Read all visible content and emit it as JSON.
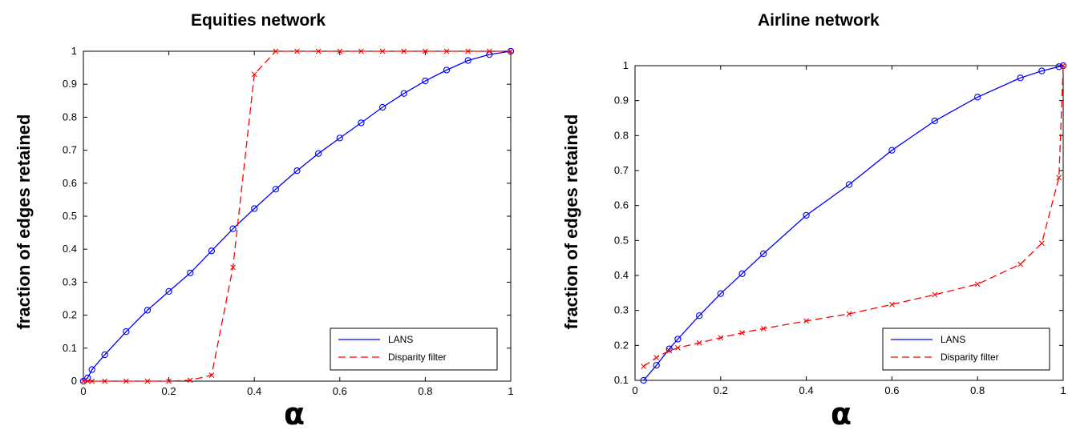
{
  "colors": {
    "lans": "#0000ff",
    "disparity": "#ff0000",
    "axes": "#000000"
  },
  "chart_data": [
    {
      "type": "line",
      "title": "Equities network",
      "xlabel": "α",
      "ylabel": "fraction of edges retained",
      "xlim": [
        0,
        1
      ],
      "ylim": [
        0,
        1
      ],
      "xticks": [
        0,
        0.2,
        0.4,
        0.6,
        0.8,
        1
      ],
      "xtick_labels": [
        "0",
        "0.2",
        "0.4",
        "0.6",
        "0.8",
        "1"
      ],
      "yticks": [
        0,
        0.1,
        0.2,
        0.3,
        0.4,
        0.5,
        0.6,
        0.7,
        0.8,
        0.9,
        1
      ],
      "ytick_labels": [
        "0",
        "0.1",
        "0.2",
        "0.3",
        "0.4",
        "0.5",
        "0.6",
        "0.7",
        "0.8",
        "0.9",
        "1"
      ],
      "grid": false,
      "legend_position": "bottom-right",
      "series": [
        {
          "name": "LANS",
          "color": "#0000ff",
          "line_style": "solid",
          "marker": "o",
          "points": [
            [
              0,
              0
            ],
            [
              0.01,
              0.01
            ],
            [
              0.02,
              0.035
            ],
            [
              0.05,
              0.08
            ],
            [
              0.1,
              0.15
            ],
            [
              0.15,
              0.215
            ],
            [
              0.2,
              0.272
            ],
            [
              0.25,
              0.328
            ],
            [
              0.3,
              0.395
            ],
            [
              0.35,
              0.462
            ],
            [
              0.4,
              0.523
            ],
            [
              0.45,
              0.582
            ],
            [
              0.5,
              0.638
            ],
            [
              0.55,
              0.69
            ],
            [
              0.6,
              0.737
            ],
            [
              0.65,
              0.783
            ],
            [
              0.7,
              0.83
            ],
            [
              0.75,
              0.872
            ],
            [
              0.8,
              0.91
            ],
            [
              0.85,
              0.943
            ],
            [
              0.9,
              0.972
            ],
            [
              0.95,
              0.99
            ],
            [
              1,
              1
            ]
          ]
        },
        {
          "name": "Disparity filter",
          "color": "#ff0000",
          "line_style": "dashed",
          "marker": "x",
          "points": [
            [
              0,
              0
            ],
            [
              0.01,
              0
            ],
            [
              0.02,
              0
            ],
            [
              0.05,
              0
            ],
            [
              0.1,
              0
            ],
            [
              0.15,
              0
            ],
            [
              0.2,
              0
            ],
            [
              0.25,
              0.003
            ],
            [
              0.3,
              0.018
            ],
            [
              0.35,
              0.345
            ],
            [
              0.4,
              0.93
            ],
            [
              0.45,
              1
            ],
            [
              0.5,
              1
            ],
            [
              0.55,
              1
            ],
            [
              0.6,
              1
            ],
            [
              0.65,
              1
            ],
            [
              0.7,
              1
            ],
            [
              0.75,
              1
            ],
            [
              0.8,
              1
            ],
            [
              0.85,
              1
            ],
            [
              0.9,
              1
            ],
            [
              0.95,
              1
            ],
            [
              1,
              1
            ]
          ]
        }
      ]
    },
    {
      "type": "line",
      "title": "Airline network",
      "xlabel": "α",
      "ylabel": "fraction of edges retained",
      "xlim": [
        0,
        1
      ],
      "ylim": [
        0.1,
        1
      ],
      "xticks": [
        0,
        0.2,
        0.4,
        0.6,
        0.8,
        1
      ],
      "xtick_labels": [
        "0",
        "0.2",
        "0.4",
        "0.6",
        "0.8",
        "1"
      ],
      "yticks": [
        0.1,
        0.2,
        0.3,
        0.4,
        0.5,
        0.6,
        0.7,
        0.8,
        0.9,
        1
      ],
      "ytick_labels": [
        "0.1",
        "0.2",
        "0.3",
        "0.4",
        "0.5",
        "0.6",
        "0.7",
        "0.8",
        "0.9",
        "1"
      ],
      "grid": false,
      "legend_position": "bottom-right",
      "series": [
        {
          "name": "LANS",
          "color": "#0000ff",
          "line_style": "solid",
          "marker": "o",
          "points": [
            [
              0.02,
              0.1
            ],
            [
              0.05,
              0.143
            ],
            [
              0.08,
              0.19
            ],
            [
              0.1,
              0.218
            ],
            [
              0.15,
              0.285
            ],
            [
              0.2,
              0.348
            ],
            [
              0.25,
              0.405
            ],
            [
              0.3,
              0.462
            ],
            [
              0.4,
              0.572
            ],
            [
              0.5,
              0.66
            ],
            [
              0.6,
              0.758
            ],
            [
              0.7,
              0.842
            ],
            [
              0.8,
              0.91
            ],
            [
              0.9,
              0.965
            ],
            [
              0.95,
              0.985
            ],
            [
              0.99,
              0.997
            ],
            [
              1,
              1
            ]
          ]
        },
        {
          "name": "Disparity filter",
          "color": "#ff0000",
          "line_style": "dashed",
          "marker": "x",
          "points": [
            [
              0.02,
              0.14
            ],
            [
              0.05,
              0.165
            ],
            [
              0.08,
              0.185
            ],
            [
              0.1,
              0.193
            ],
            [
              0.15,
              0.207
            ],
            [
              0.2,
              0.222
            ],
            [
              0.25,
              0.236
            ],
            [
              0.3,
              0.248
            ],
            [
              0.4,
              0.27
            ],
            [
              0.5,
              0.29
            ],
            [
              0.6,
              0.317
            ],
            [
              0.7,
              0.345
            ],
            [
              0.8,
              0.375
            ],
            [
              0.9,
              0.432
            ],
            [
              0.95,
              0.492
            ],
            [
              0.99,
              0.68
            ],
            [
              1,
              1
            ]
          ]
        }
      ]
    }
  ]
}
